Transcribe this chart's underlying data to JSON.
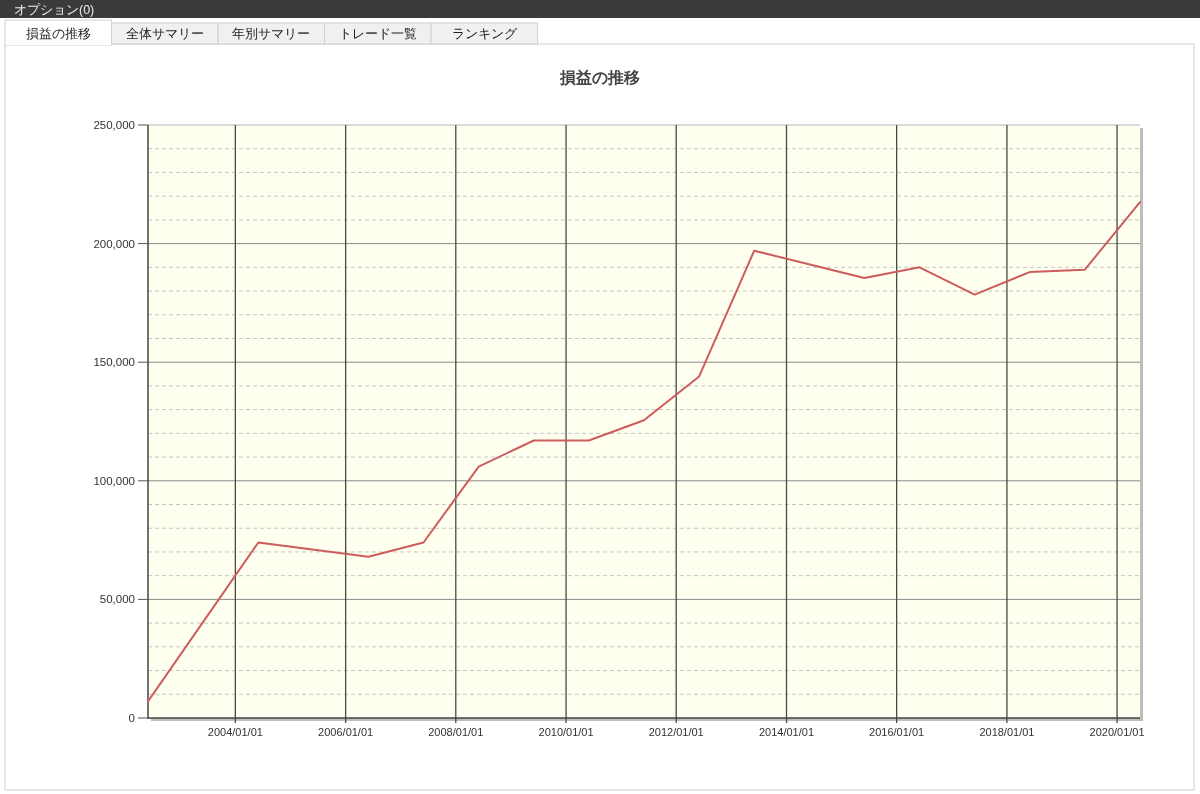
{
  "chart_data": {
    "type": "line",
    "title": "損益の推移",
    "annotations": [
      "オプション(0)",
      "損益の推移",
      "全体サマリー",
      "年別サマリー",
      "トレード一覧",
      "ランキング"
    ],
    "x": [
      "2002-06-01",
      "2004-06-01",
      "2006-06-01",
      "2007-06-01",
      "2008-06-01",
      "2009-06-01",
      "2010-06-01",
      "2011-06-01",
      "2012-06-01",
      "2013-06-01",
      "2015-06-01",
      "2016-06-01",
      "2017-06-01",
      "2018-06-01",
      "2019-06-01",
      "2020-06-01"
    ],
    "series": [
      {
        "color": "#cd5c5c",
        "values": [
          7000,
          74000,
          68000,
          74000,
          106000,
          117000,
          117000,
          125500,
          144000,
          197000,
          185500,
          190000,
          178500,
          188000,
          189000,
          217500
        ]
      }
    ],
    "xlim": [
      "2002-06-01",
      "2020-06-01"
    ],
    "xticks": [
      {
        "value": "2004-01-01",
        "label": "2004/01/01"
      },
      {
        "value": "2006-01-01",
        "label": "2006/01/01"
      },
      {
        "value": "2008-01-01",
        "label": "2008/01/01"
      },
      {
        "value": "2010-01-01",
        "label": "2010/01/01"
      },
      {
        "value": "2012-01-01",
        "label": "2012/01/01"
      },
      {
        "value": "2014-01-01",
        "label": "2014/01/01"
      },
      {
        "value": "2016-01-01",
        "label": "2016/01/01"
      },
      {
        "value": "2018-01-01",
        "label": "2018/01/01"
      },
      {
        "value": "2020-01-01",
        "label": "2020/01/01"
      }
    ],
    "ylim": [
      0,
      250000
    ],
    "yticks": [
      0,
      {
        "value": 10000,
        "label": null
      },
      {
        "value": 20000,
        "label": null
      },
      {
        "value": 30000,
        "label": null
      },
      {
        "value": 40000,
        "label": null
      },
      {
        "value": 50000,
        "label": "50,000"
      },
      {
        "value": 60000,
        "label": null
      },
      {
        "value": 70000,
        "label": null
      },
      {
        "value": 80000,
        "label": null
      },
      {
        "value": 90000,
        "label": null
      },
      {
        "value": 100000,
        "label": "100,000"
      },
      {
        "value": 110000,
        "label": null
      },
      {
        "value": 120000,
        "label": null
      },
      {
        "value": 130000,
        "label": null
      },
      {
        "value": 140000,
        "label": null
      },
      {
        "value": 150000,
        "label": "150,000"
      },
      {
        "value": 160000,
        "label": null
      },
      {
        "value": 170000,
        "label": null
      },
      {
        "value": 180000,
        "label": null
      },
      {
        "value": 190000,
        "label": null
      },
      {
        "value": 200000,
        "label": "200,000"
      },
      {
        "value": 210000,
        "label": null
      },
      {
        "value": 220000,
        "label": null
      },
      {
        "value": 230000,
        "label": null
      },
      {
        "value": 240000,
        "label": null
      },
      {
        "value": 250000,
        "label": "250,000"
      }
    ],
    "grid": true,
    "marker": "none",
    "line_style": "solid"
  }
}
